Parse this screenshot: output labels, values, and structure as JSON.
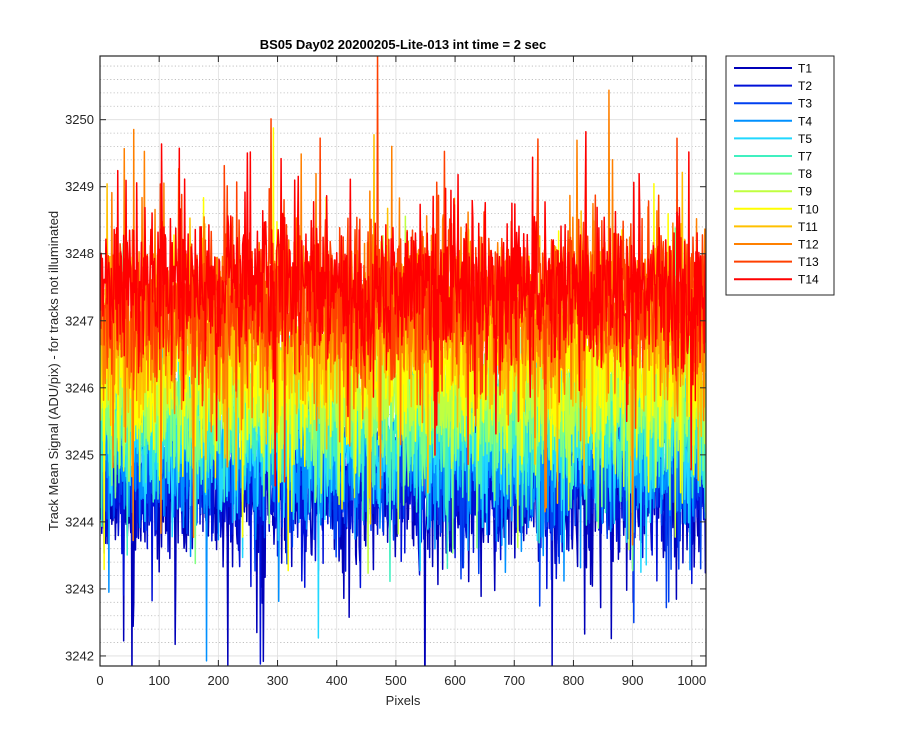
{
  "chart_data": {
    "type": "line",
    "title": "BS05 Day02 20200205-Lite-013 int time = 2 sec",
    "xlabel": "Pixels",
    "ylabel": "Track Mean Signal (ADU/pix) - for tracks not illuminated",
    "xlim": [
      0,
      1024
    ],
    "ylim": [
      3241.85,
      3250.95
    ],
    "xticks": [
      0,
      100,
      200,
      300,
      400,
      500,
      600,
      700,
      800,
      900,
      1000
    ],
    "yticks": [
      3242,
      3243,
      3244,
      3245,
      3246,
      3247,
      3248,
      3249,
      3250
    ],
    "grid": true,
    "minor_grid": true,
    "legend_position": "outside-top-right",
    "n_points": 1024,
    "series": [
      {
        "name": "T1",
        "color": "#0000b8",
        "mean": 3244.45,
        "spread": 0.55
      },
      {
        "name": "T2",
        "color": "#0010d8",
        "mean": 3244.6,
        "spread": 0.5
      },
      {
        "name": "T3",
        "color": "#0040f0",
        "mean": 3244.8,
        "spread": 0.5
      },
      {
        "name": "T4",
        "color": "#0090ff",
        "mean": 3245.0,
        "spread": 0.5
      },
      {
        "name": "T5",
        "color": "#20d8ff",
        "mean": 3245.3,
        "spread": 0.5
      },
      {
        "name": "T7",
        "color": "#40f0c0",
        "mean": 3245.55,
        "spread": 0.5
      },
      {
        "name": "T8",
        "color": "#80ff80",
        "mean": 3245.75,
        "spread": 0.5
      },
      {
        "name": "T9",
        "color": "#c0ff40",
        "mean": 3246.0,
        "spread": 0.5
      },
      {
        "name": "T10",
        "color": "#ffff00",
        "mean": 3246.4,
        "spread": 0.6
      },
      {
        "name": "T11",
        "color": "#ffc000",
        "mean": 3246.8,
        "spread": 0.6
      },
      {
        "name": "T12",
        "color": "#ff8000",
        "mean": 3247.1,
        "spread": 0.65
      },
      {
        "name": "T13",
        "color": "#ff4000",
        "mean": 3247.35,
        "spread": 0.6
      },
      {
        "name": "T14",
        "color": "#ff0000",
        "mean": 3247.5,
        "spread": 0.55
      }
    ]
  }
}
